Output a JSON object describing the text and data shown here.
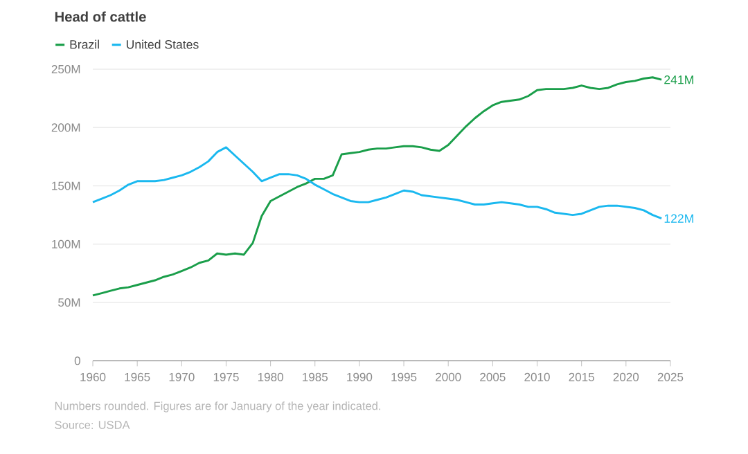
{
  "chart_data": {
    "type": "line",
    "title": "Head of cattle",
    "x": [
      1960,
      1961,
      1962,
      1963,
      1964,
      1965,
      1966,
      1967,
      1968,
      1969,
      1970,
      1971,
      1972,
      1973,
      1974,
      1975,
      1976,
      1977,
      1978,
      1979,
      1980,
      1981,
      1982,
      1983,
      1984,
      1985,
      1986,
      1987,
      1988,
      1989,
      1990,
      1991,
      1992,
      1993,
      1994,
      1995,
      1996,
      1997,
      1998,
      1999,
      2000,
      2001,
      2002,
      2003,
      2004,
      2005,
      2006,
      2007,
      2008,
      2009,
      2010,
      2011,
      2012,
      2013,
      2014,
      2015,
      2016,
      2017,
      2018,
      2019,
      2020,
      2021,
      2022,
      2023,
      2024
    ],
    "series": [
      {
        "name": "Brazil",
        "color": "#1a9e4a",
        "values": [
          56,
          58,
          60,
          62,
          63,
          65,
          67,
          69,
          72,
          74,
          77,
          80,
          84,
          86,
          92,
          91,
          92,
          91,
          101,
          124,
          137,
          141,
          145,
          149,
          152,
          156,
          156,
          159,
          177,
          178,
          179,
          181,
          182,
          182,
          183,
          184,
          184,
          183,
          181,
          180,
          185,
          193,
          201,
          208,
          214,
          219,
          222,
          223,
          224,
          227,
          232,
          233,
          233,
          233,
          234,
          236,
          234,
          233,
          234,
          237,
          239,
          240,
          242,
          243,
          241
        ]
      },
      {
        "name": "United States",
        "color": "#1ab8ef",
        "values": [
          136,
          139,
          142,
          146,
          151,
          154,
          154,
          154,
          155,
          157,
          159,
          162,
          166,
          171,
          179,
          183,
          176,
          169,
          162,
          154,
          157,
          160,
          160,
          159,
          156,
          151,
          147,
          143,
          140,
          137,
          136,
          136,
          138,
          140,
          143,
          146,
          145,
          142,
          141,
          140,
          139,
          138,
          136,
          134,
          134,
          135,
          136,
          135,
          134,
          132,
          132,
          130,
          127,
          126,
          125,
          126,
          129,
          132,
          133,
          133,
          132,
          131,
          129,
          125,
          122
        ]
      }
    ],
    "xlim": [
      1960,
      2025
    ],
    "xticks": [
      1960,
      1965,
      1970,
      1975,
      1980,
      1985,
      1990,
      1995,
      2000,
      2005,
      2010,
      2015,
      2020,
      2025
    ],
    "ylim": [
      0,
      250
    ],
    "yticks": [
      0,
      {
        "value": 50,
        "label": "50M"
      },
      {
        "value": 100,
        "label": "100M"
      },
      {
        "value": 150,
        "label": "150M"
      },
      {
        "value": 200,
        "label": "200M"
      },
      {
        "value": 250,
        "label": "250M"
      }
    ],
    "grid": "y",
    "legend": "top left",
    "marker": "none",
    "line_style": "solid",
    "annotations": [
      {
        "text": "241M",
        "x": 2024,
        "y": 241
      },
      {
        "text": "122M",
        "x": 2024,
        "y": 122
      },
      "Numbers rounded. Figures are for January of the year indicated.",
      "Source: USDA"
    ]
  }
}
